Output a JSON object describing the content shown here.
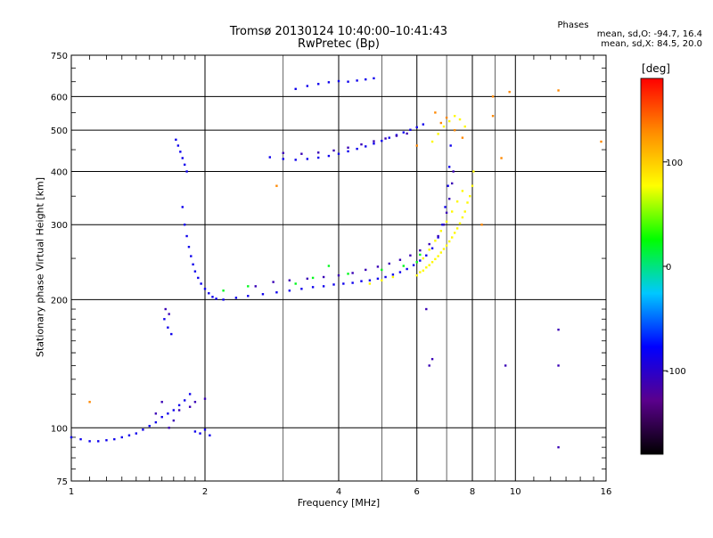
{
  "chart_data": {
    "type": "scatter",
    "title": "Tromsø 20130124 10:40:00–10:41:43",
    "subtitle": "RwPretec (Bp)",
    "xlabel": "Frequency [MHz]",
    "ylabel": "Stationary phase Virtual Height [km]",
    "x_scale": "log",
    "y_scale": "log",
    "xlim": [
      1,
      16
    ],
    "ylim": [
      75,
      750
    ],
    "x_ticks": [
      1,
      2,
      4,
      6,
      8,
      10,
      16
    ],
    "x_tick_labels": [
      "1",
      "2",
      "4",
      "6",
      "8",
      "10",
      "16"
    ],
    "x_minor_ticks": [
      3,
      5,
      7,
      9
    ],
    "y_ticks": [
      75,
      100,
      200,
      300,
      400,
      500,
      600,
      750
    ],
    "y_tick_labels": [
      "75",
      "100",
      "200",
      "300",
      "400",
      "500",
      "600",
      "750"
    ],
    "grid": true,
    "colorbar": {
      "label": "[deg]",
      "ticks": [
        100,
        0,
        -100
      ],
      "tick_labels": [
        "100",
        "0",
        "-100"
      ],
      "range": [
        -180,
        180
      ],
      "colors": [
        "#000000",
        "#5a008c",
        "#0000ff",
        "#00c8ff",
        "#00ff00",
        "#ffff00",
        "#ff8c00",
        "#ff0000"
      ]
    },
    "stats": {
      "title": "Phases",
      "o_mode": "mean, sd,O: -94.7, 16.4",
      "x_mode": "mean, sd,X:  84.5, 20.0"
    },
    "series": [
      {
        "phase_deg": -85,
        "points": [
          [
            1.0,
            95
          ],
          [
            1.05,
            94
          ],
          [
            1.1,
            93
          ],
          [
            1.15,
            93
          ],
          [
            1.2,
            93.5
          ],
          [
            1.25,
            94
          ],
          [
            1.3,
            95
          ],
          [
            1.35,
            96
          ],
          [
            1.4,
            97
          ],
          [
            1.45,
            99
          ],
          [
            1.5,
            101
          ],
          [
            1.55,
            103
          ],
          [
            1.6,
            106
          ],
          [
            1.65,
            108
          ],
          [
            1.7,
            110
          ],
          [
            1.75,
            113
          ],
          [
            1.8,
            116
          ],
          [
            1.85,
            120
          ],
          [
            1.9,
            98
          ],
          [
            1.95,
            97
          ],
          [
            2.0,
            99
          ],
          [
            2.05,
            96
          ],
          [
            1.78,
            330
          ],
          [
            1.8,
            300
          ],
          [
            1.82,
            282
          ],
          [
            1.84,
            266
          ],
          [
            1.86,
            253
          ],
          [
            1.88,
            242
          ],
          [
            1.9,
            233
          ],
          [
            1.93,
            225
          ],
          [
            1.96,
            218
          ],
          [
            2.0,
            212
          ],
          [
            2.04,
            207
          ],
          [
            2.08,
            203
          ],
          [
            2.12,
            201
          ],
          [
            2.2,
            200
          ],
          [
            2.35,
            202
          ],
          [
            2.5,
            204
          ],
          [
            2.7,
            206
          ],
          [
            2.9,
            208
          ],
          [
            3.1,
            210
          ],
          [
            3.3,
            212
          ],
          [
            3.5,
            214
          ],
          [
            3.7,
            215
          ],
          [
            3.9,
            217
          ],
          [
            4.1,
            218
          ],
          [
            4.3,
            219
          ],
          [
            4.5,
            221
          ],
          [
            4.7,
            222
          ],
          [
            4.9,
            224
          ],
          [
            5.1,
            226
          ],
          [
            5.3,
            229
          ],
          [
            5.5,
            232
          ],
          [
            5.7,
            236
          ],
          [
            5.9,
            241
          ],
          [
            6.1,
            247
          ],
          [
            6.3,
            254
          ],
          [
            6.5,
            264
          ],
          [
            6.7,
            280
          ],
          [
            6.85,
            300
          ],
          [
            6.95,
            330
          ],
          [
            7.05,
            370
          ],
          [
            7.1,
            410
          ],
          [
            7.15,
            460
          ],
          [
            1.72,
            475
          ],
          [
            1.74,
            460
          ],
          [
            1.76,
            445
          ],
          [
            1.78,
            430
          ],
          [
            1.8,
            415
          ],
          [
            1.82,
            400
          ],
          [
            2.8,
            432
          ],
          [
            3.0,
            428
          ],
          [
            3.2,
            426
          ],
          [
            3.4,
            428
          ],
          [
            3.6,
            431
          ],
          [
            3.8,
            435
          ],
          [
            4.0,
            440
          ],
          [
            4.2,
            446
          ],
          [
            4.4,
            452
          ],
          [
            4.6,
            458
          ],
          [
            4.8,
            465
          ],
          [
            5.0,
            472
          ],
          [
            5.2,
            480
          ],
          [
            5.4,
            487
          ],
          [
            5.6,
            494
          ],
          [
            5.8,
            501
          ],
          [
            6.0,
            508
          ],
          [
            6.2,
            516
          ],
          [
            3.2,
            625
          ],
          [
            3.4,
            635
          ],
          [
            3.6,
            642
          ],
          [
            3.8,
            648
          ],
          [
            4.0,
            652
          ],
          [
            4.2,
            650
          ],
          [
            4.4,
            654
          ],
          [
            4.6,
            658
          ],
          [
            4.8,
            662
          ],
          [
            1.62,
            180
          ],
          [
            1.65,
            172
          ],
          [
            1.68,
            166
          ]
        ]
      },
      {
        "phase_deg": -110,
        "points": [
          [
            2.6,
            215
          ],
          [
            2.85,
            220
          ],
          [
            3.1,
            222
          ],
          [
            3.4,
            224
          ],
          [
            3.7,
            226
          ],
          [
            4.0,
            228
          ],
          [
            4.3,
            231
          ],
          [
            4.6,
            235
          ],
          [
            4.9,
            239
          ],
          [
            5.2,
            243
          ],
          [
            5.5,
            248
          ],
          [
            5.8,
            254
          ],
          [
            6.1,
            261
          ],
          [
            6.4,
            270
          ],
          [
            6.7,
            282
          ],
          [
            6.9,
            300
          ],
          [
            7.0,
            320
          ],
          [
            7.1,
            345
          ],
          [
            7.2,
            375
          ],
          [
            7.25,
            400
          ],
          [
            3.0,
            442
          ],
          [
            3.3,
            440
          ],
          [
            3.6,
            443
          ],
          [
            3.9,
            448
          ],
          [
            4.2,
            455
          ],
          [
            4.5,
            463
          ],
          [
            4.8,
            471
          ],
          [
            5.1,
            478
          ],
          [
            5.4,
            485
          ],
          [
            5.7,
            491
          ],
          [
            1.55,
            108
          ],
          [
            1.6,
            115
          ],
          [
            1.66,
            100
          ],
          [
            1.7,
            104
          ],
          [
            1.75,
            110
          ],
          [
            1.85,
            112
          ],
          [
            1.9,
            115
          ],
          [
            2.0,
            117
          ],
          [
            1.63,
            190
          ],
          [
            1.66,
            185
          ],
          [
            6.3,
            190
          ],
          [
            6.4,
            140
          ],
          [
            6.5,
            145
          ],
          [
            9.5,
            140
          ],
          [
            12.5,
            170
          ],
          [
            12.5,
            140
          ],
          [
            12.5,
            90
          ]
        ]
      },
      {
        "phase_deg": 80,
        "points": [
          [
            6.0,
            228
          ],
          [
            6.2,
            234
          ],
          [
            6.4,
            241
          ],
          [
            6.6,
            249
          ],
          [
            6.8,
            258
          ],
          [
            7.0,
            268
          ],
          [
            7.2,
            280
          ],
          [
            7.4,
            294
          ],
          [
            7.6,
            312
          ],
          [
            7.8,
            338
          ],
          [
            8.0,
            370
          ],
          [
            8.05,
            400
          ],
          [
            6.1,
            232
          ],
          [
            6.3,
            238
          ],
          [
            6.5,
            245
          ],
          [
            6.7,
            253
          ],
          [
            6.9,
            263
          ],
          [
            7.1,
            274
          ],
          [
            7.3,
            287
          ],
          [
            7.5,
            302
          ],
          [
            7.7,
            322
          ],
          [
            7.9,
            350
          ],
          [
            6.5,
            470
          ],
          [
            6.7,
            490
          ],
          [
            6.9,
            510
          ],
          [
            7.1,
            525
          ],
          [
            7.3,
            540
          ],
          [
            7.5,
            530
          ],
          [
            7.7,
            510
          ],
          [
            6.2,
            250
          ],
          [
            6.4,
            262
          ],
          [
            6.6,
            275
          ],
          [
            6.8,
            290
          ],
          [
            7.0,
            305
          ],
          [
            7.2,
            322
          ],
          [
            7.4,
            340
          ],
          [
            7.6,
            360
          ],
          [
            4.7,
            218
          ],
          [
            5.0,
            222
          ],
          [
            5.3,
            226
          ]
        ]
      },
      {
        "phase_deg": 20,
        "points": [
          [
            2.2,
            210
          ],
          [
            2.5,
            215
          ],
          [
            3.2,
            218
          ],
          [
            3.5,
            225
          ],
          [
            4.2,
            230
          ],
          [
            5.0,
            235
          ],
          [
            5.6,
            240
          ],
          [
            6.0,
            245
          ],
          [
            6.1,
            255
          ],
          [
            3.8,
            240
          ]
        ]
      },
      {
        "phase_deg": 130,
        "points": [
          [
            6.8,
            520
          ],
          [
            7.0,
            535
          ],
          [
            7.3,
            500
          ],
          [
            7.6,
            480
          ],
          [
            8.4,
            300
          ],
          [
            8.9,
            600
          ],
          [
            8.9,
            540
          ],
          [
            9.3,
            430
          ],
          [
            1.1,
            115
          ],
          [
            2.9,
            370
          ],
          [
            9.7,
            615
          ],
          [
            12.5,
            620
          ],
          [
            15.6,
            470
          ],
          [
            6.0,
            460
          ],
          [
            6.6,
            550
          ]
        ]
      }
    ]
  }
}
